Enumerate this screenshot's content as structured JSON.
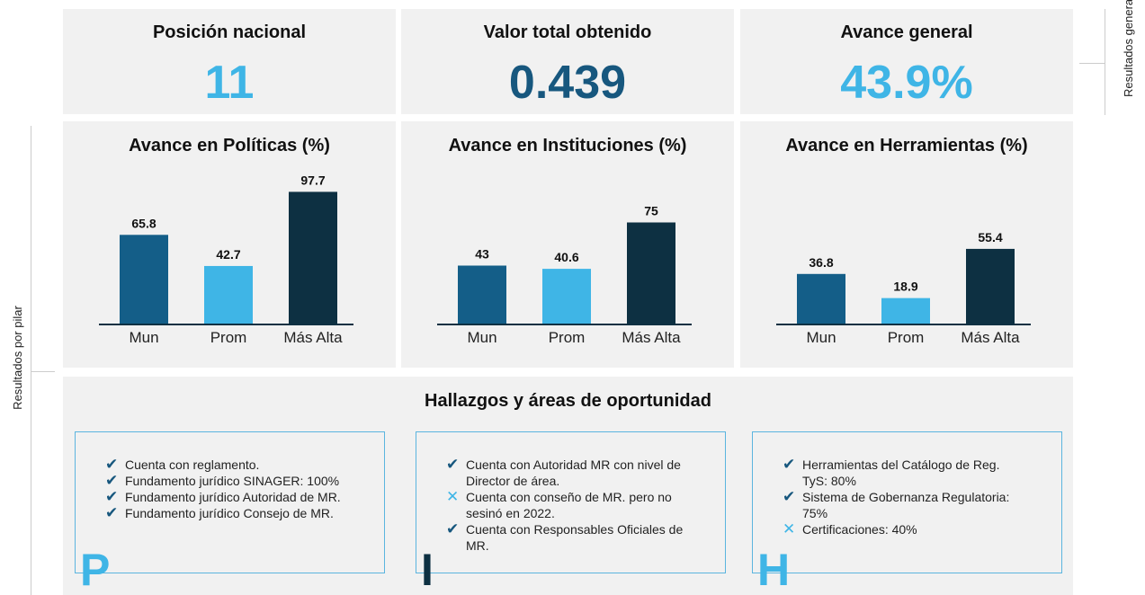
{
  "side_labels": {
    "general": "Resultados generales",
    "pillars": "Resultados por pilar"
  },
  "kpis": [
    {
      "title": "Posición nacional",
      "value": "11",
      "color": "#3fb5e6"
    },
    {
      "title": "Valor total obtenido",
      "value": "0.439",
      "color": "#17577e"
    },
    {
      "title": "Avance general",
      "value": "43.9%",
      "color": "#3fb5e6"
    }
  ],
  "chart_data": [
    {
      "type": "bar",
      "title": "Avance en Políticas (%)",
      "categories": [
        "Mun",
        "Prom",
        "Más Alta"
      ],
      "values": [
        65.8,
        42.7,
        97.7
      ],
      "colors": [
        "#145e88",
        "#3fb5e6",
        "#0d3042"
      ]
    },
    {
      "type": "bar",
      "title": "Avance en Instituciones (%)",
      "categories": [
        "Mun",
        "Prom",
        "Más Alta"
      ],
      "values": [
        43,
        40.6,
        75
      ],
      "colors": [
        "#145e88",
        "#3fb5e6",
        "#0d3042"
      ]
    },
    {
      "type": "bar",
      "title": "Avance en Herramientas (%)",
      "categories": [
        "Mun",
        "Prom",
        "Más Alta"
      ],
      "values": [
        36.8,
        18.9,
        55.4
      ],
      "colors": [
        "#145e88",
        "#3fb5e6",
        "#0d3042"
      ]
    }
  ],
  "findings": {
    "title": "Hallazgos y áreas de oportunidad",
    "boxes": [
      {
        "letter": "P",
        "color": "#3fb5e6",
        "items": [
          {
            "ok": true,
            "text": "Cuenta con reglamento."
          },
          {
            "ok": true,
            "text": "Fundamento jurídico SINAGER: 100%"
          },
          {
            "ok": true,
            "text": "Fundamento jurídico Autoridad de MR."
          },
          {
            "ok": true,
            "text": "Fundamento jurídico Consejo de MR."
          }
        ]
      },
      {
        "letter": "I",
        "color": "#0d3042",
        "items": [
          {
            "ok": true,
            "text": "Cuenta con Autoridad MR con nivel de Director de área."
          },
          {
            "ok": false,
            "text": "Cuenta con conseño de MR. pero no sesinó en 2022."
          },
          {
            "ok": true,
            "text": "Cuenta con Responsables Oficiales de MR."
          }
        ]
      },
      {
        "letter": "H",
        "color": "#3fb5e6",
        "items": [
          {
            "ok": true,
            "text": "Herramientas del Catálogo de Reg. TyS: 80%"
          },
          {
            "ok": true,
            "text": "Sistema de Gobernanza Regulatoria: 75%"
          },
          {
            "ok": false,
            "text": "Certificaciones: 40%"
          }
        ]
      }
    ]
  }
}
